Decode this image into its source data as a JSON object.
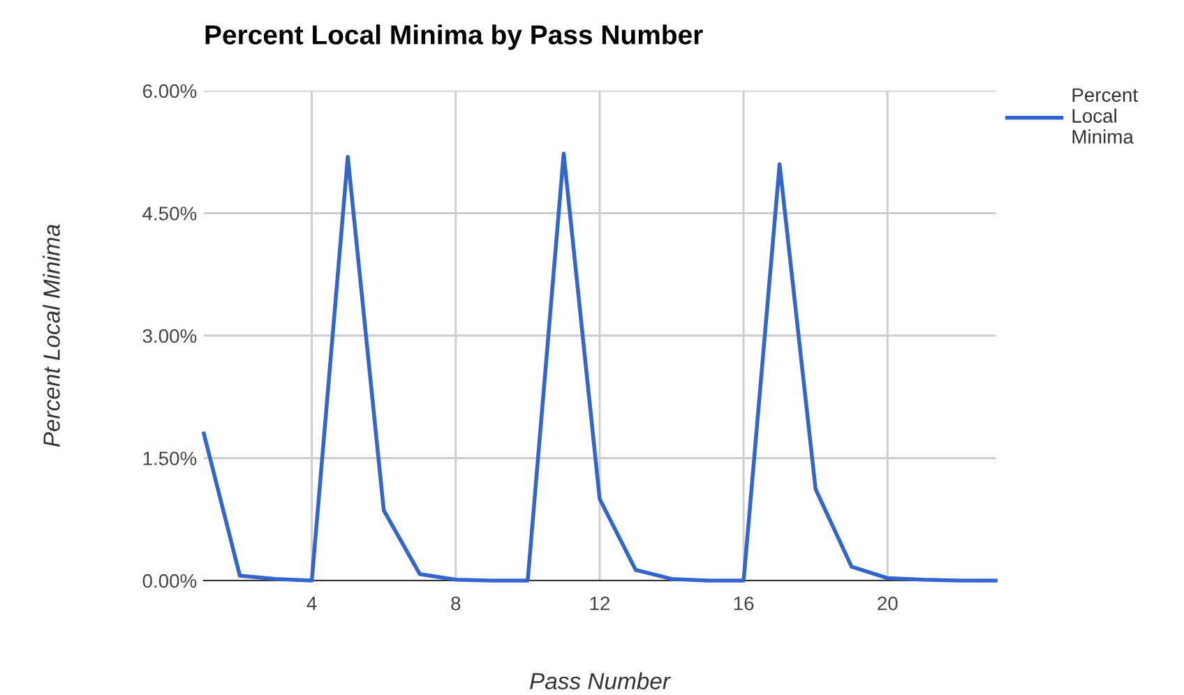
{
  "chart_data": {
    "type": "line",
    "title": "Percent Local Minima by Pass Number",
    "xlabel": "Pass Number",
    "ylabel": "Percent Local Minima",
    "x": [
      1,
      2,
      3,
      4,
      5,
      6,
      7,
      8,
      9,
      10,
      11,
      12,
      13,
      14,
      15,
      16,
      17,
      18,
      19,
      20,
      21,
      22,
      23
    ],
    "series": [
      {
        "name": "Percent Local Minima",
        "color": "#3366cc",
        "values": [
          1.8,
          0.06,
          0.02,
          0,
          5.19,
          0.86,
          0.08,
          0.01,
          0,
          0,
          5.23,
          1.0,
          0.13,
          0.02,
          0,
          0,
          5.1,
          1.12,
          0.17,
          0.03,
          0.01,
          0,
          0
        ]
      }
    ],
    "xlim": [
      1,
      23
    ],
    "xticks": [
      4,
      8,
      12,
      16,
      20
    ],
    "ylim": [
      0,
      6
    ],
    "yticks": [
      {
        "value": 0,
        "label": "0.00%"
      },
      {
        "value": 1.5,
        "label": "1.50%"
      },
      {
        "value": 3,
        "label": "3.00%"
      },
      {
        "value": 4.5,
        "label": "4.50%"
      },
      {
        "value": 6,
        "label": "6.00%"
      }
    ],
    "grid": true,
    "legend": "top right",
    "marker": "none",
    "line_style": "solid"
  }
}
